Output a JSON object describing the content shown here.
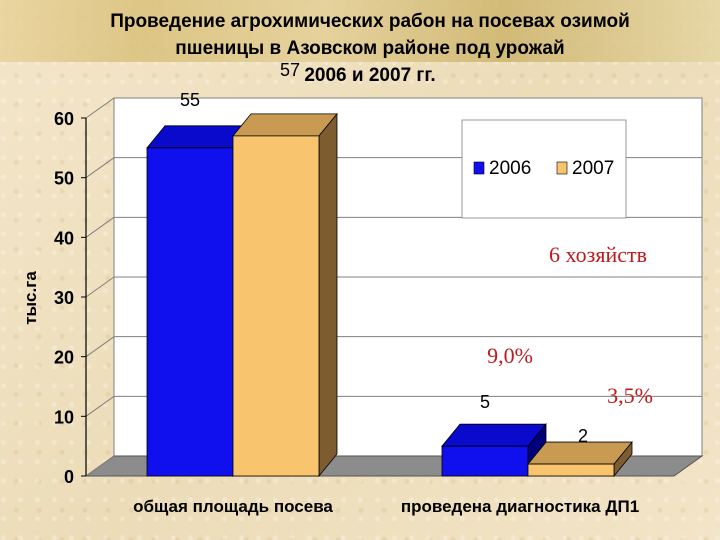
{
  "chart_data": {
    "type": "bar",
    "title": "Проведение агрохимических рабон на посевах озимой пшеницы в Азовском районе под урожай 2006 и 2007 гг.",
    "title_lines": [
      "Проведение агрохимических рабон на посевах озимой",
      "пшеницы в Азовском районе под урожай",
      "2006 и 2007 гг."
    ],
    "ylabel": "тыс.га",
    "xlabel": "",
    "ylim": [
      0,
      60
    ],
    "yticks": [
      0,
      10,
      20,
      30,
      40,
      50,
      60
    ],
    "categories": [
      "общая площадь посева",
      "проведена диагностика ДП1"
    ],
    "series": [
      {
        "name": "2006",
        "values": [
          55,
          5
        ],
        "color": "#1010ee"
      },
      {
        "name": "2007",
        "values": [
          57,
          2
        ],
        "color": "#f9c46e"
      }
    ],
    "grid": true,
    "legend_position": "top-right",
    "annotations": [
      "6 хозяйств",
      "9,0%",
      "3,5%"
    ],
    "annotation_color": "#c0191b"
  }
}
